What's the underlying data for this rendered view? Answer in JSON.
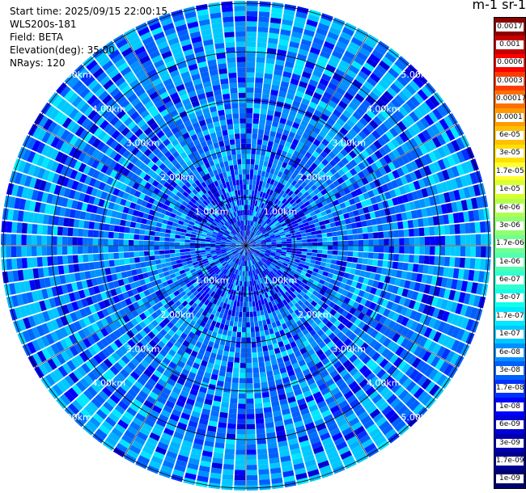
{
  "header": {
    "start_time": "Start time: 2025/09/15 22:00:15",
    "instrument": "WLS200s-181",
    "field": "Field: BETA",
    "elevation": "Elevation(deg): 35.00",
    "nrays": "NRays: 120"
  },
  "colorbar": {
    "title": "m-1 sr-1",
    "labels": [
      "0.0017",
      "0.001",
      "0.0006",
      "0.0003",
      "0.00017",
      "0.0001",
      "6e-05",
      "3e-05",
      "1.7e-05",
      "1e-05",
      "6e-06",
      "3e-06",
      "1.7e-06",
      "1e-06",
      "6e-07",
      "3e-07",
      "1.7e-07",
      "1e-07",
      "6e-08",
      "3e-08",
      "1.7e-08",
      "1e-08",
      "6e-09",
      "3e-09",
      "1.7e-09",
      "1e-09"
    ],
    "colors": [
      "#8b0000",
      "#c40000",
      "#ff0000",
      "#ff3c00",
      "#ff7000",
      "#ff9a00",
      "#ffc000",
      "#ffe000",
      "#ffff30",
      "#d8ff30",
      "#b0ff50",
      "#90ff70",
      "#70ff90",
      "#50ffb0",
      "#30ffd0",
      "#10ffe8",
      "#00e8ff",
      "#00c8ff",
      "#0090ff",
      "#0060ff",
      "#0030ff",
      "#0000ff",
      "#0000d8",
      "#0000b0",
      "#000090",
      "#000070"
    ]
  },
  "chart_data": {
    "type": "heatmap",
    "projection": "polar PPI",
    "field": "BETA",
    "elevation_deg": 35.0,
    "n_rays": 120,
    "range_rings_km": [
      1,
      2,
      3,
      4,
      5
    ],
    "range_ring_labels": [
      "1.00km",
      "2.00km",
      "3.00km",
      "4.00km",
      "5.00km"
    ],
    "radial_spokes_deg": [
      0,
      30,
      60,
      90,
      120,
      150,
      180,
      210,
      240,
      270,
      300,
      330
    ],
    "color_scale": "log",
    "value_range": [
      1e-09,
      0.0017
    ],
    "dominant_values": [
      6e-08,
      3e-08,
      1.7e-08,
      1e-08
    ],
    "grid": true
  }
}
